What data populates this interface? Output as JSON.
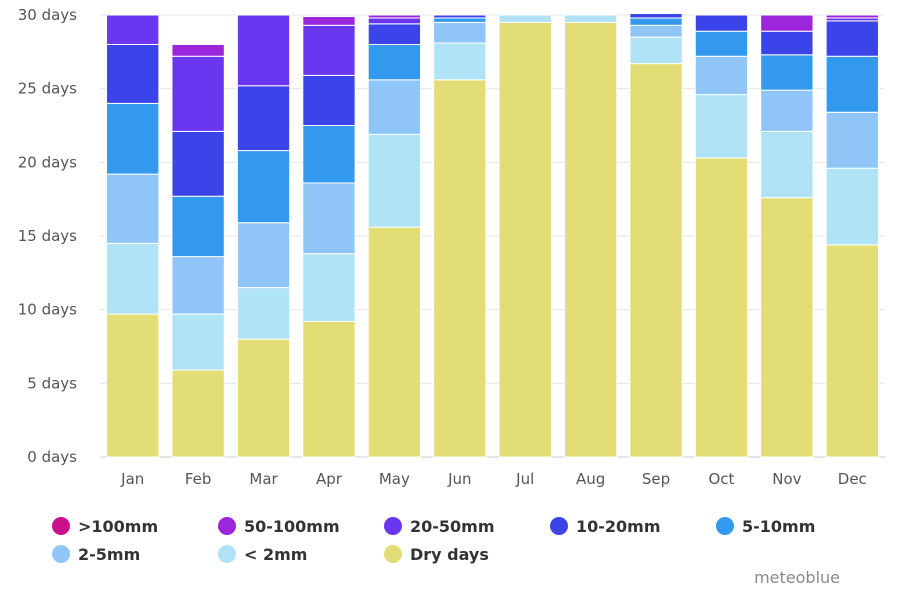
{
  "chart_data": {
    "type": "bar",
    "stacked": true,
    "categories": [
      "Jan",
      "Feb",
      "Mar",
      "Apr",
      "May",
      "Jun",
      "Jul",
      "Aug",
      "Sep",
      "Oct",
      "Nov",
      "Dec"
    ],
    "y_ticks": [
      "0 days",
      "5 days",
      "10 days",
      "15 days",
      "20 days",
      "25 days",
      "30 days"
    ],
    "ylim": [
      0,
      30
    ],
    "grid": true,
    "legend_position": "bottom-left",
    "series": [
      {
        "name": "Dry days",
        "color": "#e3dd75",
        "values": [
          9.7,
          5.9,
          8.0,
          9.2,
          15.6,
          25.6,
          29.5,
          29.5,
          26.7,
          20.3,
          17.6,
          14.4
        ]
      },
      {
        "name": "< 2mm",
        "color": "#b0e3f6",
        "values": [
          4.8,
          3.8,
          3.5,
          4.6,
          6.3,
          2.5,
          0.5,
          0.5,
          1.8,
          4.3,
          4.5,
          5.2
        ]
      },
      {
        "name": "2-5mm",
        "color": "#8fc6f7",
        "values": [
          4.7,
          3.9,
          4.4,
          4.8,
          3.7,
          1.4,
          0,
          0,
          0.8,
          2.6,
          2.8,
          3.8
        ]
      },
      {
        "name": "5-10mm",
        "color": "#3399ee",
        "values": [
          4.8,
          4.1,
          4.9,
          3.9,
          2.4,
          0.3,
          0,
          0,
          0.5,
          1.7,
          2.4,
          3.8
        ]
      },
      {
        "name": "10-20mm",
        "color": "#3a44e8",
        "values": [
          4.0,
          4.4,
          4.4,
          3.4,
          1.4,
          0.2,
          0,
          0,
          0.3,
          1.1,
          1.6,
          2.4
        ]
      },
      {
        "name": "20-50mm",
        "color": "#6b36ef",
        "values": [
          2.0,
          5.1,
          4.8,
          3.4,
          0.4,
          0,
          0,
          0,
          0,
          0,
          0,
          0.2
        ]
      },
      {
        "name": "50-100mm",
        "color": "#9c26db",
        "values": [
          0,
          0.8,
          0,
          0.6,
          0.2,
          0,
          0,
          0,
          0,
          0,
          1.1,
          0.2
        ]
      },
      {
        "name": ">100mm",
        "color": "#c8118d",
        "values": [
          0,
          0,
          0,
          0,
          0,
          0,
          0,
          0,
          0,
          0,
          0,
          0
        ]
      }
    ]
  },
  "legend": [
    {
      "label": ">100mm",
      "color": "#c8118d"
    },
    {
      "label": "50-100mm",
      "color": "#9c26db"
    },
    {
      "label": "20-50mm",
      "color": "#6b36ef"
    },
    {
      "label": "10-20mm",
      "color": "#3a44e8"
    },
    {
      "label": "5-10mm",
      "color": "#3399ee"
    },
    {
      "label": "2-5mm",
      "color": "#8fc6f7"
    },
    {
      "label": "< 2mm",
      "color": "#b0e3f6"
    },
    {
      "label": "Dry days",
      "color": "#e3dd75"
    }
  ],
  "watermark": "meteoblue"
}
